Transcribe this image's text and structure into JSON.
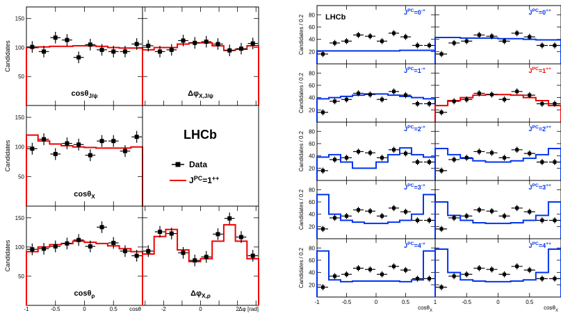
{
  "chart_data": [
    {
      "type": "histogram-grid",
      "experiment_label": "LHCb",
      "ylabel": "Candidates",
      "legend": {
        "data": "Data",
        "fit": "J<sup>PC</sup>=1<sup>++</sup>",
        "fit_parts": [
          "J",
          "PC",
          "=1",
          "++"
        ],
        "fit_color": "#ee0000",
        "data_color": "#000000",
        "placement": "center-right"
      },
      "panels": [
        {
          "id": "costheta-jpsi",
          "label": "cosθ",
          "label_sub": "J/ψ",
          "x": [
            -0.9,
            -0.7,
            -0.5,
            -0.3,
            -0.1,
            0.1,
            0.3,
            0.5,
            0.7,
            0.9
          ],
          "y": [
            101,
            93,
            117,
            113,
            83,
            105,
            96,
            93,
            93,
            106
          ],
          "yerr": 10,
          "fit": [
            100,
            101,
            102,
            102,
            103,
            103,
            102,
            100,
            99,
            99
          ],
          "ylim": [
            0,
            170
          ]
        },
        {
          "id": "dphi-x-jpsi",
          "label": "Δφ",
          "label_sub": "X,J/ψ",
          "x": [
            -2.83,
            -2.2,
            -1.57,
            -0.94,
            -0.31,
            0.31,
            0.94,
            1.57,
            2.2,
            2.83
          ],
          "y": [
            103,
            93,
            96,
            112,
            108,
            110,
            106,
            95,
            98,
            107
          ],
          "yerr": 10,
          "fit": [
            96,
            100,
            100,
            106,
            108,
            108,
            103,
            95,
            97,
            103
          ],
          "ylim": [
            0,
            170
          ]
        },
        {
          "id": "costheta-x",
          "label": "cosθ",
          "label_sub": "X",
          "x": [
            -0.9,
            -0.7,
            -0.5,
            -0.3,
            -0.1,
            0.1,
            0.3,
            0.5,
            0.7,
            0.9
          ],
          "y": [
            97,
            113,
            88,
            106,
            104,
            86,
            110,
            110,
            93,
            117
          ],
          "yerr": 10,
          "fit": [
            120,
            110,
            105,
            102,
            100,
            99,
            98,
            98,
            98,
            100
          ],
          "ylim": [
            0,
            170
          ]
        },
        {
          "id": "costheta-rho",
          "label": "cosθ",
          "label_sub": "ρ",
          "x": [
            -0.9,
            -0.7,
            -0.5,
            -0.3,
            -0.1,
            0.1,
            0.3,
            0.5,
            0.7,
            0.9
          ],
          "y": [
            96,
            97,
            101,
            106,
            112,
            101,
            134,
            107,
            93,
            85
          ],
          "yerr": 10,
          "fit": [
            92,
            100,
            104,
            106,
            110,
            108,
            106,
            102,
            97,
            92
          ],
          "ylim": [
            0,
            170
          ]
        },
        {
          "id": "dphi-x-rho",
          "label": "Δφ",
          "label_sub": "X,ρ",
          "x": [
            -2.83,
            -2.2,
            -1.57,
            -0.94,
            -0.31,
            0.31,
            0.94,
            1.57,
            2.2,
            2.83
          ],
          "y": [
            93,
            126,
            123,
            90,
            77,
            83,
            122,
            149,
            117,
            85
          ],
          "yerr": 10,
          "fit": [
            88,
            118,
            130,
            95,
            75,
            80,
            110,
            138,
            110,
            80
          ],
          "ylim": [
            0,
            170
          ]
        }
      ],
      "y_ticks": [
        "50",
        "100",
        "150"
      ],
      "x_ticks_cos": [
        "-1",
        "-0.5",
        "0",
        "0.5",
        "1"
      ],
      "x_ticks_phi": [
        "-2",
        "0",
        "2"
      ],
      "xlabel_cos": "cosθ",
      "xlabel_phi": "Δφ [rad]"
    },
    {
      "type": "histogram-grid",
      "experiment_label": "LHCb",
      "ylabel": "Candidates / 0.2",
      "x": [
        -0.9,
        -0.7,
        -0.5,
        -0.3,
        -0.1,
        0.1,
        0.3,
        0.5,
        0.7,
        0.9
      ],
      "data": [
        16,
        34,
        37,
        47,
        45,
        37,
        50,
        44,
        30,
        30
      ],
      "yerr": 5,
      "ylim": [
        0,
        95
      ],
      "y_ticks": [
        "20",
        "40",
        "60",
        "80"
      ],
      "x_ticks": [
        "-0.5",
        "0",
        "0.5"
      ],
      "x_edge_labels": [
        "-1",
        "1"
      ],
      "xlabel": "cosθ",
      "xlabel_sub": "X",
      "hypotheses": [
        {
          "label": "J<sup>PC</sup>=0<sup>-+</sup>",
          "label_parts": [
            "J",
            "PC",
            "=0",
            "-+"
          ],
          "color": "#0033ee",
          "fit": [
            21,
            21,
            21,
            21,
            21,
            21,
            21,
            22,
            22,
            22
          ]
        },
        {
          "label": "J<sup>PC</sup>=0<sup>++</sup>",
          "label_parts": [
            "J",
            "PC",
            "=0",
            "++"
          ],
          "color": "#0033ee",
          "fit": [
            43,
            43,
            42,
            42,
            42,
            41,
            41,
            40,
            39,
            39
          ]
        },
        {
          "label": "J<sup>PC</sup>=1<sup>-+</sup>",
          "label_parts": [
            "J",
            "PC",
            "=1",
            "-+"
          ],
          "color": "#0033ee",
          "fit": [
            38,
            40,
            42,
            44,
            46,
            46,
            44,
            42,
            40,
            38
          ]
        },
        {
          "label": "J<sup>PC</sup>=1<sup>++</sup>",
          "label_parts": [
            "J",
            "PC",
            "=1",
            "++"
          ],
          "color": "#ee0000",
          "fit": [
            27,
            35,
            40,
            44,
            45,
            45,
            44,
            40,
            35,
            27
          ]
        },
        {
          "label": "J<sup>PC</sup>=2<sup>-+</sup>",
          "label_parts": [
            "J",
            "PC",
            "=2",
            "-+"
          ],
          "color": "#0033ee",
          "fit": [
            38,
            42,
            30,
            20,
            20,
            30,
            42,
            53,
            42,
            38
          ]
        },
        {
          "label": "J<sup>PC</sup>=2<sup>++</sup>",
          "label_parts": [
            "J",
            "PC",
            "=2",
            "++"
          ],
          "color": "#0033ee",
          "fit": [
            52,
            42,
            36,
            32,
            30,
            30,
            32,
            36,
            42,
            52
          ]
        },
        {
          "label": "J<sup>PC</sup>=3<sup>-+</sup>",
          "label_parts": [
            "J",
            "PC",
            "=3",
            "-+"
          ],
          "color": "#0033ee",
          "fit": [
            72,
            40,
            30,
            27,
            25,
            25,
            27,
            30,
            40,
            72
          ]
        },
        {
          "label": "J<sup>PC</sup>=3<sup>++</sup>",
          "label_parts": [
            "J",
            "PC",
            "=3",
            "++"
          ],
          "color": "#0033ee",
          "fit": [
            60,
            38,
            30,
            26,
            25,
            25,
            26,
            30,
            38,
            60
          ]
        },
        {
          "label": "J<sup>PC</sup>=4<sup>-+</sup>",
          "label_parts": [
            "J",
            "PC",
            "=4",
            "-+"
          ],
          "color": "#0033ee",
          "fit": [
            75,
            28,
            25,
            26,
            26,
            26,
            26,
            25,
            28,
            75
          ]
        },
        {
          "label": "J<sup>PC</sup>=4<sup>++</sup>",
          "label_parts": [
            "J",
            "PC",
            "=4",
            "++"
          ],
          "color": "#0033ee",
          "fit": [
            78,
            40,
            28,
            26,
            25,
            25,
            26,
            28,
            40,
            78
          ]
        }
      ]
    }
  ]
}
